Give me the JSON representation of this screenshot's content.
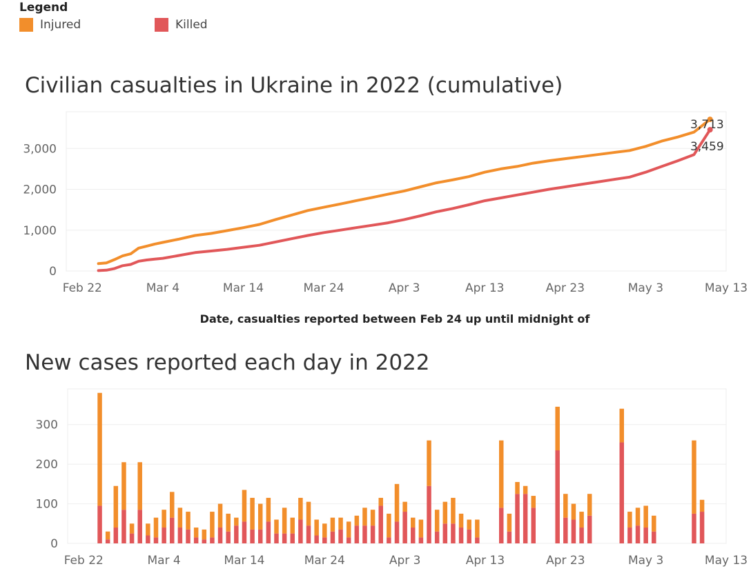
{
  "legend": {
    "title": "Legend",
    "items": [
      {
        "name": "Injured",
        "color": "#F28E2B"
      },
      {
        "name": "Killed",
        "color": "#E15759"
      }
    ]
  },
  "chart_data": [
    {
      "type": "line",
      "title": "Civilian casualties in Ukraine in 2022 (cumulative)",
      "xlabel": "Date, casualties reported between Feb 24 up until midnight of",
      "ylabel": "",
      "x_ticks": [
        "Feb 22",
        "Mar 4",
        "Mar 14",
        "Mar 24",
        "Apr 3",
        "Apr 13",
        "Apr 23",
        "May 3",
        "May 13"
      ],
      "y_ticks": [
        0,
        1000,
        2000,
        3000
      ],
      "y_tick_labels": [
        "0",
        "1,000",
        "2,000",
        "3,000"
      ],
      "ylim": [
        0,
        3900
      ],
      "xlim": [
        "2022-02-20",
        "2022-05-13"
      ],
      "grid": true,
      "series": [
        {
          "name": "Injured",
          "color": "#F28E2B",
          "end_label": "3,713",
          "points": [
            [
              "2022-02-24",
              180
            ],
            [
              "2022-02-25",
              200
            ],
            [
              "2022-02-26",
              280
            ],
            [
              "2022-02-27",
              370
            ],
            [
              "2022-02-28",
              420
            ],
            [
              "2022-03-01",
              560
            ],
            [
              "2022-03-02",
              610
            ],
            [
              "2022-03-03",
              660
            ],
            [
              "2022-03-04",
              700
            ],
            [
              "2022-03-06",
              780
            ],
            [
              "2022-03-08",
              870
            ],
            [
              "2022-03-10",
              920
            ],
            [
              "2022-03-12",
              990
            ],
            [
              "2022-03-14",
              1060
            ],
            [
              "2022-03-16",
              1140
            ],
            [
              "2022-03-18",
              1260
            ],
            [
              "2022-03-20",
              1370
            ],
            [
              "2022-03-22",
              1480
            ],
            [
              "2022-03-24",
              1560
            ],
            [
              "2022-03-26",
              1640
            ],
            [
              "2022-03-28",
              1720
            ],
            [
              "2022-03-30",
              1800
            ],
            [
              "2022-04-01",
              1880
            ],
            [
              "2022-04-03",
              1960
            ],
            [
              "2022-04-05",
              2060
            ],
            [
              "2022-04-07",
              2160
            ],
            [
              "2022-04-09",
              2230
            ],
            [
              "2022-04-11",
              2310
            ],
            [
              "2022-04-13",
              2420
            ],
            [
              "2022-04-15",
              2500
            ],
            [
              "2022-04-17",
              2560
            ],
            [
              "2022-04-19",
              2640
            ],
            [
              "2022-04-21",
              2700
            ],
            [
              "2022-04-23",
              2750
            ],
            [
              "2022-04-25",
              2800
            ],
            [
              "2022-04-27",
              2850
            ],
            [
              "2022-04-29",
              2900
            ],
            [
              "2022-05-01",
              2950
            ],
            [
              "2022-05-03",
              3050
            ],
            [
              "2022-05-05",
              3180
            ],
            [
              "2022-05-07",
              3280
            ],
            [
              "2022-05-09",
              3400
            ],
            [
              "2022-05-11",
              3713
            ]
          ]
        },
        {
          "name": "Killed",
          "color": "#E15759",
          "end_label": "3,459",
          "points": [
            [
              "2022-02-24",
              10
            ],
            [
              "2022-02-25",
              20
            ],
            [
              "2022-02-26",
              60
            ],
            [
              "2022-02-27",
              130
            ],
            [
              "2022-02-28",
              160
            ],
            [
              "2022-03-01",
              240
            ],
            [
              "2022-03-02",
              270
            ],
            [
              "2022-03-03",
              290
            ],
            [
              "2022-03-04",
              310
            ],
            [
              "2022-03-06",
              380
            ],
            [
              "2022-03-08",
              450
            ],
            [
              "2022-03-10",
              490
            ],
            [
              "2022-03-12",
              530
            ],
            [
              "2022-03-14",
              580
            ],
            [
              "2022-03-16",
              630
            ],
            [
              "2022-03-18",
              710
            ],
            [
              "2022-03-20",
              790
            ],
            [
              "2022-03-22",
              870
            ],
            [
              "2022-03-24",
              940
            ],
            [
              "2022-03-26",
              1000
            ],
            [
              "2022-03-28",
              1060
            ],
            [
              "2022-03-30",
              1120
            ],
            [
              "2022-04-01",
              1180
            ],
            [
              "2022-04-03",
              1260
            ],
            [
              "2022-04-05",
              1350
            ],
            [
              "2022-04-07",
              1450
            ],
            [
              "2022-04-09",
              1530
            ],
            [
              "2022-04-11",
              1620
            ],
            [
              "2022-04-13",
              1720
            ],
            [
              "2022-04-15",
              1790
            ],
            [
              "2022-04-17",
              1860
            ],
            [
              "2022-04-19",
              1930
            ],
            [
              "2022-04-21",
              2000
            ],
            [
              "2022-04-23",
              2060
            ],
            [
              "2022-04-25",
              2120
            ],
            [
              "2022-04-27",
              2180
            ],
            [
              "2022-04-29",
              2240
            ],
            [
              "2022-05-01",
              2300
            ],
            [
              "2022-05-03",
              2420
            ],
            [
              "2022-05-05",
              2560
            ],
            [
              "2022-05-07",
              2700
            ],
            [
              "2022-05-09",
              2850
            ],
            [
              "2022-05-11",
              3459
            ]
          ]
        }
      ]
    },
    {
      "type": "bar",
      "stacked": true,
      "title": "New cases reported each day in 2022",
      "xlabel": "",
      "ylabel": "",
      "x_ticks": [
        "Feb 22",
        "Mar 4",
        "Mar 14",
        "Mar 24",
        "Apr 3",
        "Apr 13",
        "Apr 23",
        "May 3",
        "May 13"
      ],
      "y_ticks": [
        0,
        100,
        200,
        300
      ],
      "y_tick_labels": [
        "0",
        "100",
        "200",
        "300"
      ],
      "ylim": [
        0,
        390
      ],
      "xlim": [
        "2022-02-20",
        "2022-05-13"
      ],
      "grid": true,
      "stack_order": [
        "Killed",
        "Injured"
      ],
      "days": [
        {
          "date": "2022-02-24",
          "killed": 95,
          "injured": 285
        },
        {
          "date": "2022-02-25",
          "killed": 10,
          "injured": 20
        },
        {
          "date": "2022-02-26",
          "killed": 40,
          "injured": 105
        },
        {
          "date": "2022-02-27",
          "killed": 85,
          "injured": 120
        },
        {
          "date": "2022-02-28",
          "killed": 25,
          "injured": 25
        },
        {
          "date": "2022-03-01",
          "killed": 85,
          "injured": 120
        },
        {
          "date": "2022-03-02",
          "killed": 20,
          "injured": 30
        },
        {
          "date": "2022-03-03",
          "killed": 15,
          "injured": 50
        },
        {
          "date": "2022-03-04",
          "killed": 40,
          "injured": 45
        },
        {
          "date": "2022-03-05",
          "killed": 65,
          "injured": 65
        },
        {
          "date": "2022-03-06",
          "killed": 40,
          "injured": 50
        },
        {
          "date": "2022-03-07",
          "killed": 35,
          "injured": 45
        },
        {
          "date": "2022-03-08",
          "killed": 15,
          "injured": 25
        },
        {
          "date": "2022-03-09",
          "killed": 10,
          "injured": 25
        },
        {
          "date": "2022-03-10",
          "killed": 15,
          "injured": 65
        },
        {
          "date": "2022-03-11",
          "killed": 40,
          "injured": 60
        },
        {
          "date": "2022-03-12",
          "killed": 30,
          "injured": 45
        },
        {
          "date": "2022-03-13",
          "killed": 45,
          "injured": 20
        },
        {
          "date": "2022-03-14",
          "killed": 55,
          "injured": 80
        },
        {
          "date": "2022-03-15",
          "killed": 35,
          "injured": 80
        },
        {
          "date": "2022-03-16",
          "killed": 35,
          "injured": 65
        },
        {
          "date": "2022-03-17",
          "killed": 55,
          "injured": 60
        },
        {
          "date": "2022-03-18",
          "killed": 25,
          "injured": 35
        },
        {
          "date": "2022-03-19",
          "killed": 25,
          "injured": 65
        },
        {
          "date": "2022-03-20",
          "killed": 25,
          "injured": 40
        },
        {
          "date": "2022-03-21",
          "killed": 60,
          "injured": 55
        },
        {
          "date": "2022-03-22",
          "killed": 45,
          "injured": 60
        },
        {
          "date": "2022-03-23",
          "killed": 20,
          "injured": 40
        },
        {
          "date": "2022-03-24",
          "killed": 15,
          "injured": 35
        },
        {
          "date": "2022-03-25",
          "killed": 30,
          "injured": 35
        },
        {
          "date": "2022-03-26",
          "killed": 35,
          "injured": 30
        },
        {
          "date": "2022-03-27",
          "killed": 15,
          "injured": 40
        },
        {
          "date": "2022-03-28",
          "killed": 45,
          "injured": 25
        },
        {
          "date": "2022-03-29",
          "killed": 45,
          "injured": 45
        },
        {
          "date": "2022-03-30",
          "killed": 45,
          "injured": 40
        },
        {
          "date": "2022-03-31",
          "killed": 95,
          "injured": 20
        },
        {
          "date": "2022-04-01",
          "killed": 15,
          "injured": 60
        },
        {
          "date": "2022-04-02",
          "killed": 55,
          "injured": 95
        },
        {
          "date": "2022-04-03",
          "killed": 80,
          "injured": 25
        },
        {
          "date": "2022-04-04",
          "killed": 40,
          "injured": 25
        },
        {
          "date": "2022-04-05",
          "killed": 15,
          "injured": 45
        },
        {
          "date": "2022-04-06",
          "killed": 145,
          "injured": 115
        },
        {
          "date": "2022-04-07",
          "killed": 30,
          "injured": 55
        },
        {
          "date": "2022-04-08",
          "killed": 50,
          "injured": 55
        },
        {
          "date": "2022-04-09",
          "killed": 50,
          "injured": 65
        },
        {
          "date": "2022-04-10",
          "killed": 40,
          "injured": 35
        },
        {
          "date": "2022-04-11",
          "killed": 35,
          "injured": 25
        },
        {
          "date": "2022-04-12",
          "killed": 15,
          "injured": 45
        },
        {
          "date": "2022-04-15",
          "killed": 90,
          "injured": 170
        },
        {
          "date": "2022-04-16",
          "killed": 30,
          "injured": 45
        },
        {
          "date": "2022-04-17",
          "killed": 125,
          "injured": 30
        },
        {
          "date": "2022-04-18",
          "killed": 125,
          "injured": 20
        },
        {
          "date": "2022-04-19",
          "killed": 90,
          "injured": 30
        },
        {
          "date": "2022-04-22",
          "killed": 235,
          "injured": 110
        },
        {
          "date": "2022-04-23",
          "killed": 65,
          "injured": 60
        },
        {
          "date": "2022-04-24",
          "killed": 60,
          "injured": 40
        },
        {
          "date": "2022-04-25",
          "killed": 40,
          "injured": 40
        },
        {
          "date": "2022-04-26",
          "killed": 70,
          "injured": 55
        },
        {
          "date": "2022-04-30",
          "killed": 255,
          "injured": 85
        },
        {
          "date": "2022-05-01",
          "killed": 40,
          "injured": 40
        },
        {
          "date": "2022-05-02",
          "killed": 45,
          "injured": 45
        },
        {
          "date": "2022-05-03",
          "killed": 40,
          "injured": 55
        },
        {
          "date": "2022-05-04",
          "killed": 30,
          "injured": 40
        },
        {
          "date": "2022-05-09",
          "killed": 75,
          "injured": 185
        },
        {
          "date": "2022-05-10",
          "killed": 80,
          "injured": 30
        }
      ]
    }
  ]
}
